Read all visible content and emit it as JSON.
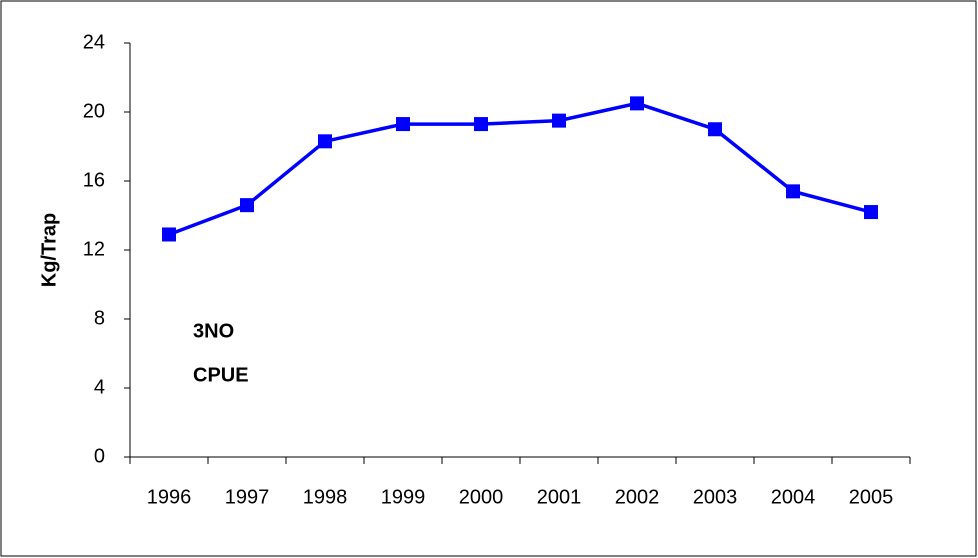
{
  "chart_data": {
    "type": "line",
    "y_label": "Kg/Trap",
    "annotation": [
      "3NO",
      "CPUE"
    ],
    "categories": [
      "1996",
      "1997",
      "1998",
      "1999",
      "2000",
      "2001",
      "2002",
      "2003",
      "2004",
      "2005"
    ],
    "series": [
      {
        "color": "#0000ff",
        "values": [
          12.9,
          14.6,
          18.3,
          19.3,
          19.3,
          19.5,
          20.5,
          19.0,
          15.4,
          14.2
        ]
      }
    ],
    "ylim": [
      0,
      24
    ],
    "yticks": [
      0,
      4,
      8,
      12,
      16,
      20,
      24
    ],
    "grid": false
  }
}
